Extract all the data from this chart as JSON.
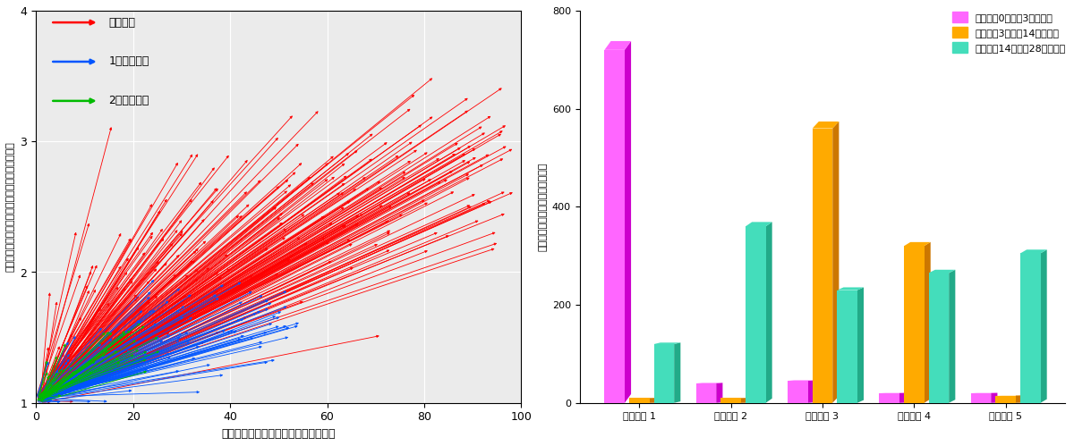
{
  "scatter_xlabel": "粒子内の各銅化学種の質量パーセント",
  "scatter_ylabel": "粒子内の各銅化学種の密度分布に対する四分位比",
  "scatter_xlim": [
    0,
    100
  ],
  "scatter_ylim": [
    1.0,
    4.0
  ],
  "scatter_xticks": [
    0,
    20,
    40,
    60,
    80,
    100
  ],
  "scatter_yticks": [
    1.0,
    2.0,
    3.0,
    4.0
  ],
  "legend_entries": [
    {
      "label": "真ちゅう",
      "color": "#ff0000"
    },
    {
      "label": "1価の硫化銅",
      "color": "#0055ff"
    },
    {
      "label": "2価の硫化銅",
      "color": "#00bb00"
    }
  ],
  "bar_categories": [
    "パターン 1",
    "パターン 2",
    "パターン 3",
    "パターン 4",
    "パターン 5"
  ],
  "bar_series": [
    {
      "label": "老化時間0日から3日の変化",
      "color": "#ff66ff",
      "dark_color": "#cc00cc",
      "values": [
        720,
        40,
        45,
        20,
        20
      ]
    },
    {
      "label": "老化時間3日から14日の変化",
      "color": "#ffaa00",
      "dark_color": "#cc7700",
      "values": [
        10,
        10,
        560,
        320,
        15
      ]
    },
    {
      "label": "老化時間14日から28日の変化",
      "color": "#44ddbb",
      "dark_color": "#22aa88",
      "values": [
        120,
        360,
        230,
        265,
        305
      ]
    }
  ],
  "bar_ylim": [
    0,
    800
  ],
  "bar_yticks": [
    0,
    200,
    400,
    600,
    800
  ],
  "bar_ylabel": "各反応タイプに該当する粒子の数",
  "scatter_bg": "#ebebeb",
  "bar_bg": "#ffffff"
}
